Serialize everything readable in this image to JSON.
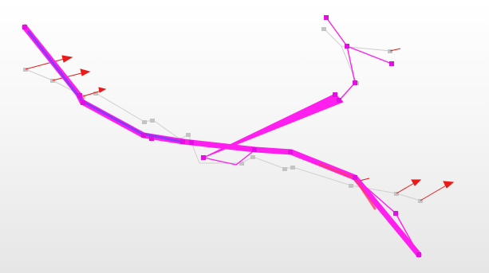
{
  "viewer": {
    "colors": {
      "background_top": "#ffffff",
      "background_bottom": "#e6e6e6",
      "trajectory": "#ff22ee",
      "trajectory_dark": "#c010c0",
      "overlap": "#7a3cff",
      "ground_truth": "#c8c8c8",
      "arrow": "#ee1111",
      "highlight": "#ff2266"
    }
  }
}
